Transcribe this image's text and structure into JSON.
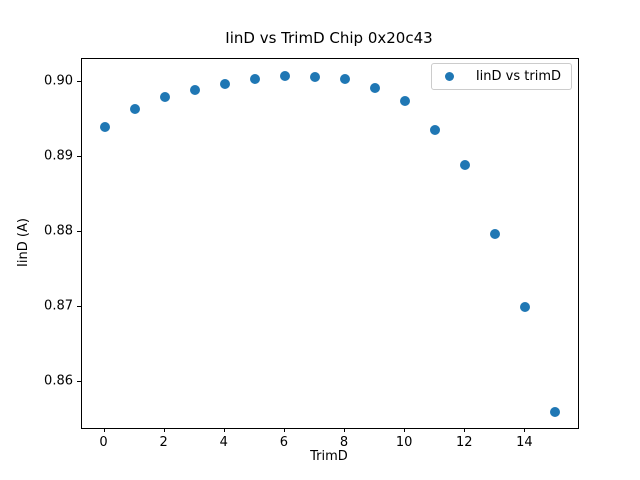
{
  "chart_data": {
    "type": "scatter",
    "title": "IinD vs TrimD Chip 0x20c43",
    "xlabel": "TrimD",
    "ylabel": "IinD (A)",
    "legend_entries": [
      "IinD vs trimD"
    ],
    "legend_position": "upper right",
    "marker_color": "#1f77b4",
    "grid": false,
    "x": [
      0,
      1,
      2,
      3,
      4,
      5,
      6,
      7,
      8,
      9,
      10,
      11,
      12,
      13,
      14,
      15
    ],
    "y": [
      0.8941,
      0.8964,
      0.898,
      0.899,
      0.8998,
      0.9005,
      0.9008,
      0.9007,
      0.9005,
      0.8993,
      0.8975,
      0.8936,
      0.889,
      0.8798,
      0.8701,
      0.8561
    ],
    "xlim": [
      -0.75,
      15.75
    ],
    "ylim": [
      0.8539,
      0.9031
    ],
    "xticks": [
      0,
      2,
      4,
      6,
      8,
      10,
      12,
      14
    ],
    "yticks": [
      0.86,
      0.87,
      0.88,
      0.89,
      0.9
    ],
    "ytick_decimals": 2
  }
}
